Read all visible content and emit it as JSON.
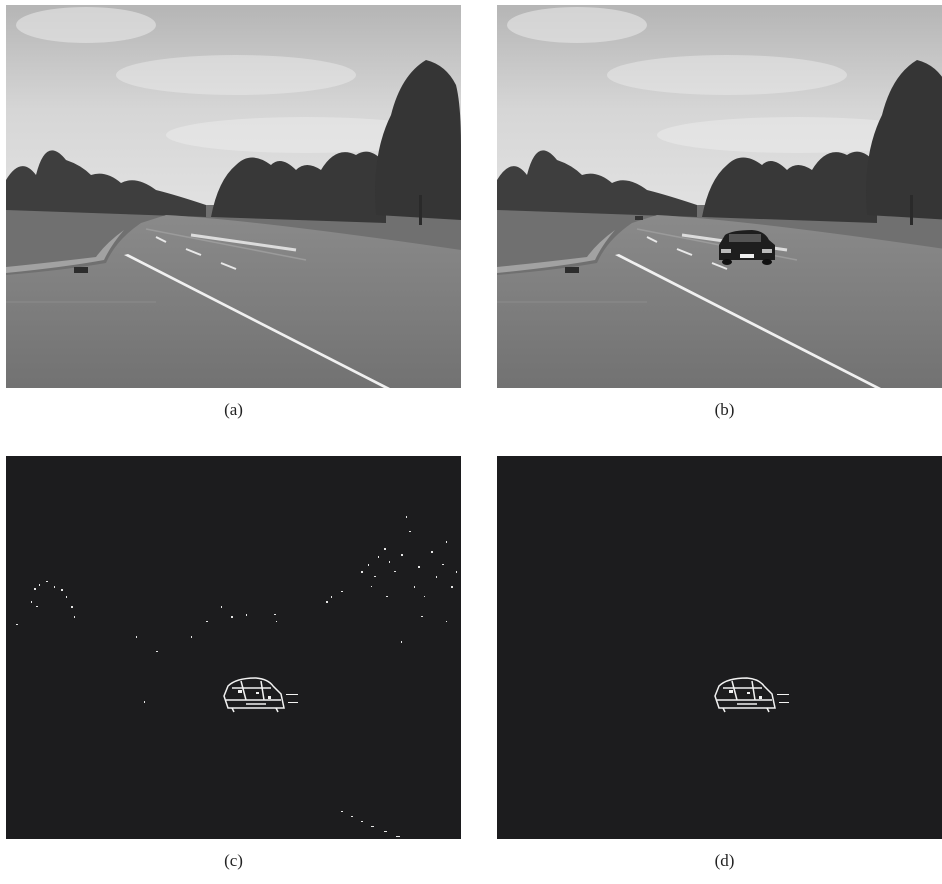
{
  "figure": {
    "panels": [
      {
        "id": "a",
        "caption": "(a)",
        "content": "background-frame"
      },
      {
        "id": "b",
        "caption": "(b)",
        "content": "frame-with-vehicle"
      },
      {
        "id": "c",
        "caption": "(c)",
        "content": "difference-mask-noisy"
      },
      {
        "id": "d",
        "caption": "(d)",
        "content": "difference-mask-filtered"
      }
    ]
  },
  "colors": {
    "page_background": "#ffffff",
    "mask_background": "#1c1c1e",
    "mask_foreground": "#f2f2f2",
    "sky": "#c9c9c9",
    "road": "#7a7a7a",
    "foliage": "#3a3a3a",
    "grass": "#6b6b6b",
    "lane_marking": "#f0f0f0"
  }
}
